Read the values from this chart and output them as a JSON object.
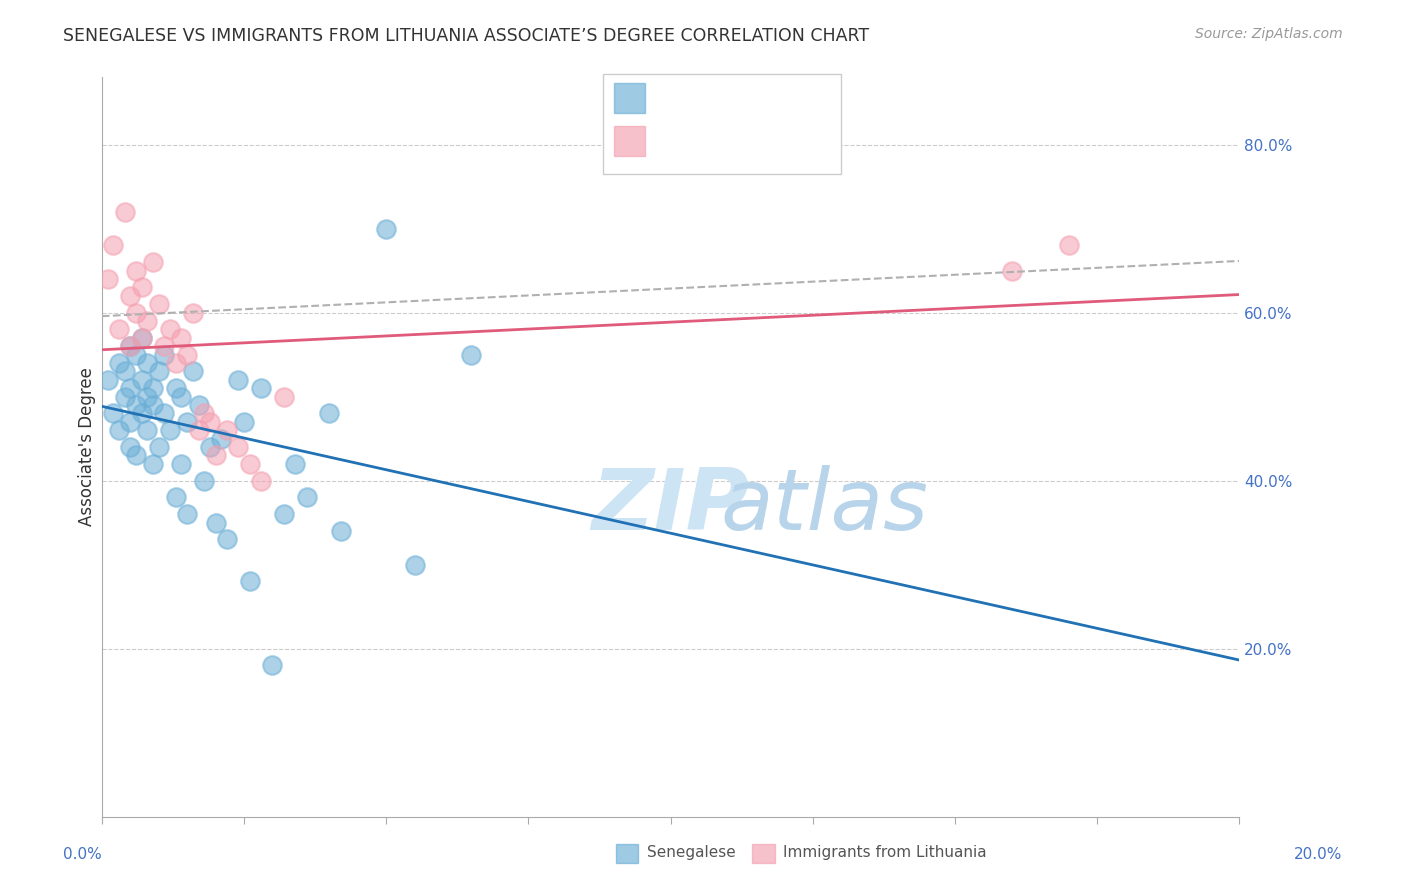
{
  "title": "SENEGALESE VS IMMIGRANTS FROM LITHUANIA ASSOCIATE’S DEGREE CORRELATION CHART",
  "source": "Source: ZipAtlas.com",
  "ylabel": "Associate's Degree",
  "yticks": [
    0.2,
    0.4,
    0.6,
    0.8
  ],
  "ytick_labels": [
    "20.0%",
    "40.0%",
    "60.0%",
    "80.0%"
  ],
  "blue_color": "#6baed6",
  "pink_color": "#f4a0b0",
  "blue_line_color": "#2171b5",
  "pink_line_color": "#e05a7a",
  "dashed_line_color": "#b0b0b0",
  "senegalese_x": [
    0.001,
    0.002,
    0.003,
    0.003,
    0.004,
    0.004,
    0.005,
    0.005,
    0.005,
    0.005,
    0.006,
    0.006,
    0.006,
    0.007,
    0.007,
    0.007,
    0.008,
    0.008,
    0.008,
    0.009,
    0.009,
    0.009,
    0.01,
    0.01,
    0.011,
    0.011,
    0.012,
    0.013,
    0.013,
    0.014,
    0.014,
    0.015,
    0.015,
    0.016,
    0.017,
    0.018,
    0.019,
    0.02,
    0.021,
    0.022,
    0.024,
    0.025,
    0.026,
    0.028,
    0.03,
    0.032,
    0.034,
    0.036,
    0.04,
    0.042,
    0.05,
    0.055,
    0.065
  ],
  "senegalese_y": [
    0.52,
    0.48,
    0.54,
    0.46,
    0.5,
    0.53,
    0.47,
    0.56,
    0.44,
    0.51,
    0.49,
    0.55,
    0.43,
    0.52,
    0.48,
    0.57,
    0.5,
    0.46,
    0.54,
    0.51,
    0.49,
    0.42,
    0.53,
    0.44,
    0.55,
    0.48,
    0.46,
    0.51,
    0.38,
    0.5,
    0.42,
    0.47,
    0.36,
    0.53,
    0.49,
    0.4,
    0.44,
    0.35,
    0.45,
    0.33,
    0.52,
    0.47,
    0.28,
    0.51,
    0.18,
    0.36,
    0.42,
    0.38,
    0.48,
    0.34,
    0.7,
    0.3,
    0.55
  ],
  "lithuania_x": [
    0.001,
    0.002,
    0.003,
    0.004,
    0.005,
    0.005,
    0.006,
    0.006,
    0.007,
    0.007,
    0.008,
    0.009,
    0.01,
    0.011,
    0.012,
    0.013,
    0.014,
    0.015,
    0.016,
    0.017,
    0.018,
    0.019,
    0.02,
    0.022,
    0.024,
    0.026,
    0.028,
    0.032,
    0.16,
    0.17
  ],
  "lithuania_y": [
    0.64,
    0.68,
    0.58,
    0.72,
    0.62,
    0.56,
    0.65,
    0.6,
    0.63,
    0.57,
    0.59,
    0.66,
    0.61,
    0.56,
    0.58,
    0.54,
    0.57,
    0.55,
    0.6,
    0.46,
    0.48,
    0.47,
    0.43,
    0.46,
    0.44,
    0.42,
    0.4,
    0.5,
    0.65,
    0.68
  ],
  "xmin": 0.0,
  "xmax": 0.2,
  "ymin": 0.0,
  "ymax": 0.88,
  "background_color": "#ffffff",
  "watermark_zip_color": "#cde4f5",
  "watermark_atlas_color": "#b8d4ea"
}
